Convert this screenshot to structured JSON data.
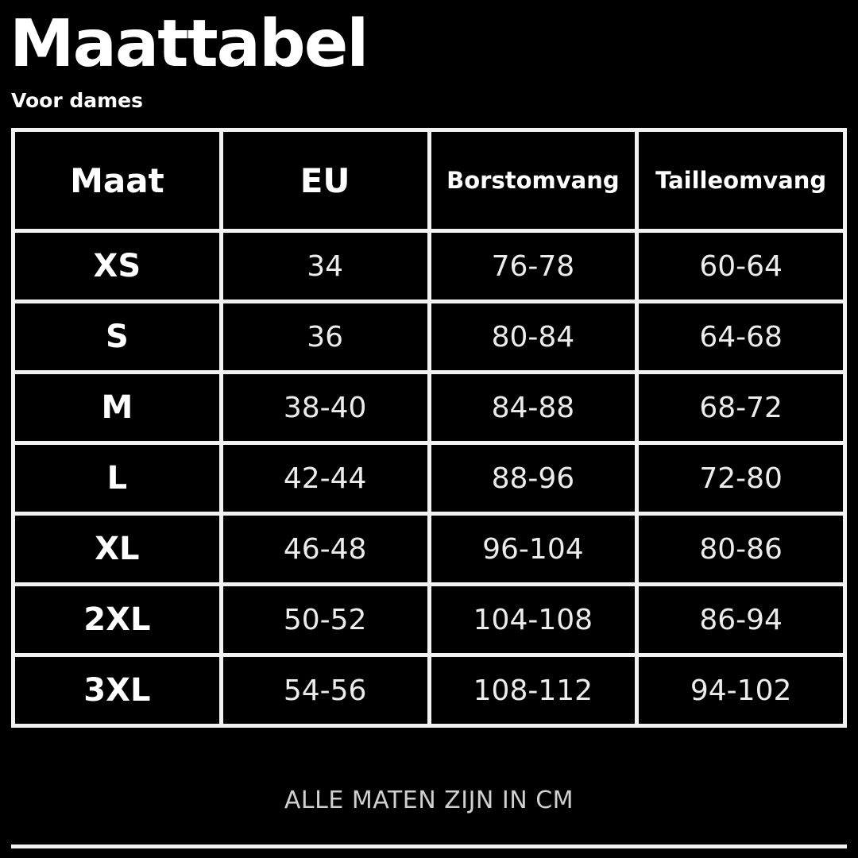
{
  "title": "Maattabel",
  "subtitle": "Voor dames",
  "table": {
    "headers": [
      "Maat",
      "EU",
      "Borstomvang",
      "Tailleomvang"
    ],
    "rows": [
      [
        "XS",
        "34",
        "76-78",
        "60-64"
      ],
      [
        "S",
        "36",
        "80-84",
        "64-68"
      ],
      [
        "M",
        "38-40",
        "84-88",
        "68-72"
      ],
      [
        "L",
        "42-44",
        "88-96",
        "72-80"
      ],
      [
        "XL",
        "46-48",
        "96-104",
        "80-86"
      ],
      [
        "2XL",
        "50-52",
        "104-108",
        "86-94"
      ],
      [
        "3XL",
        "54-56",
        "108-112",
        "94-102"
      ]
    ]
  },
  "footer": "ALLE MATEN ZIJN IN CM"
}
